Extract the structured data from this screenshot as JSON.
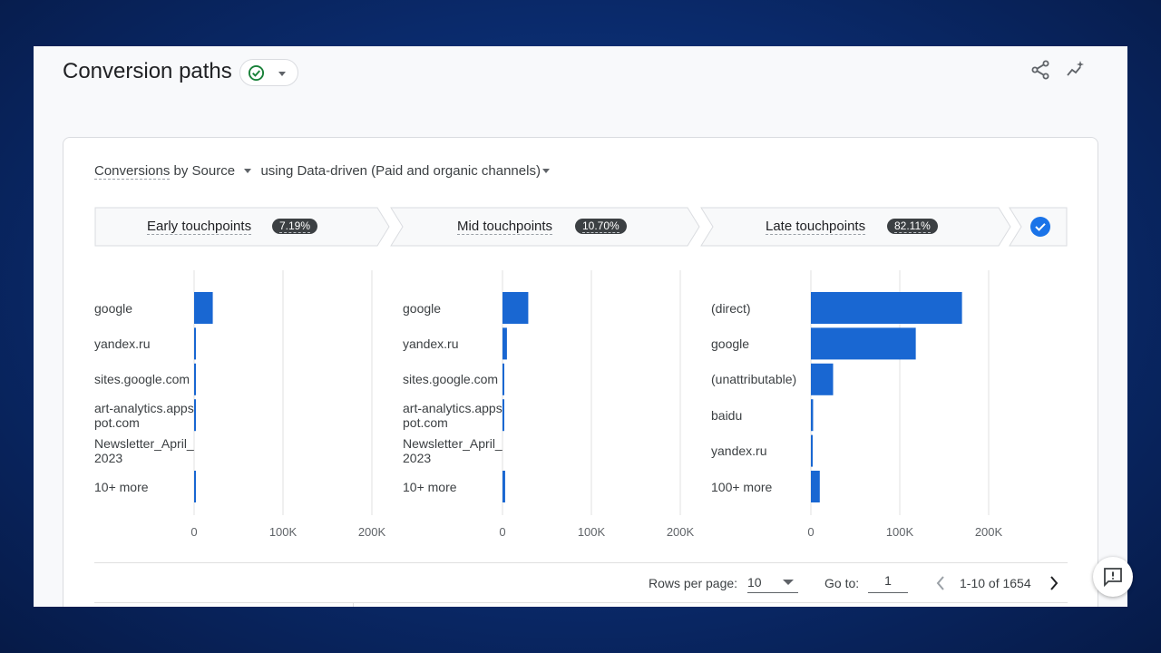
{
  "header": {
    "title": "Conversion paths"
  },
  "controls": {
    "metric": "Conversions",
    "dimension": "by Source",
    "model": "using Data-driven (Paid and organic channels)"
  },
  "stages": [
    {
      "label": "Early touchpoints",
      "percent": "7.19%"
    },
    {
      "label": "Mid touchpoints",
      "percent": "10.70%"
    },
    {
      "label": "Late touchpoints",
      "percent": "82.11%"
    }
  ],
  "chart_data": [
    {
      "type": "bar",
      "orientation": "horizontal",
      "categories": [
        "google",
        "yandex.ru",
        "sites.google.com",
        "art-analytics.appspot.com",
        "Newsletter_April_2023",
        "10+ more"
      ],
      "values": [
        21000,
        2000,
        1500,
        1500,
        0,
        2000
      ],
      "xlim": [
        0,
        200000
      ],
      "xticks": [
        "0",
        "100K",
        "200K"
      ],
      "grid": true
    },
    {
      "type": "bar",
      "orientation": "horizontal",
      "categories": [
        "google",
        "yandex.ru",
        "sites.google.com",
        "art-analytics.appspot.com",
        "Newsletter_April_2023",
        "10+ more"
      ],
      "values": [
        29000,
        5000,
        1500,
        1500,
        0,
        3000
      ],
      "xlim": [
        0,
        200000
      ],
      "xticks": [
        "0",
        "100K",
        "200K"
      ],
      "grid": true
    },
    {
      "type": "bar",
      "orientation": "horizontal",
      "categories": [
        "(direct)",
        "google",
        "(unattributable)",
        "baidu",
        "yandex.ru",
        "100+ more"
      ],
      "values": [
        170000,
        118000,
        25000,
        2500,
        2000,
        10000
      ],
      "xlim": [
        0,
        200000
      ],
      "xticks": [
        "0",
        "100K",
        "200K"
      ],
      "grid": true
    }
  ],
  "pager": {
    "rows_label": "Rows per page:",
    "rows_value": "10",
    "goto_label": "Go to:",
    "goto_value": "1",
    "range": "1-10 of 1654"
  },
  "colors": {
    "bar": "#1967d2",
    "check": "#188038",
    "accent": "#1a73e8"
  }
}
